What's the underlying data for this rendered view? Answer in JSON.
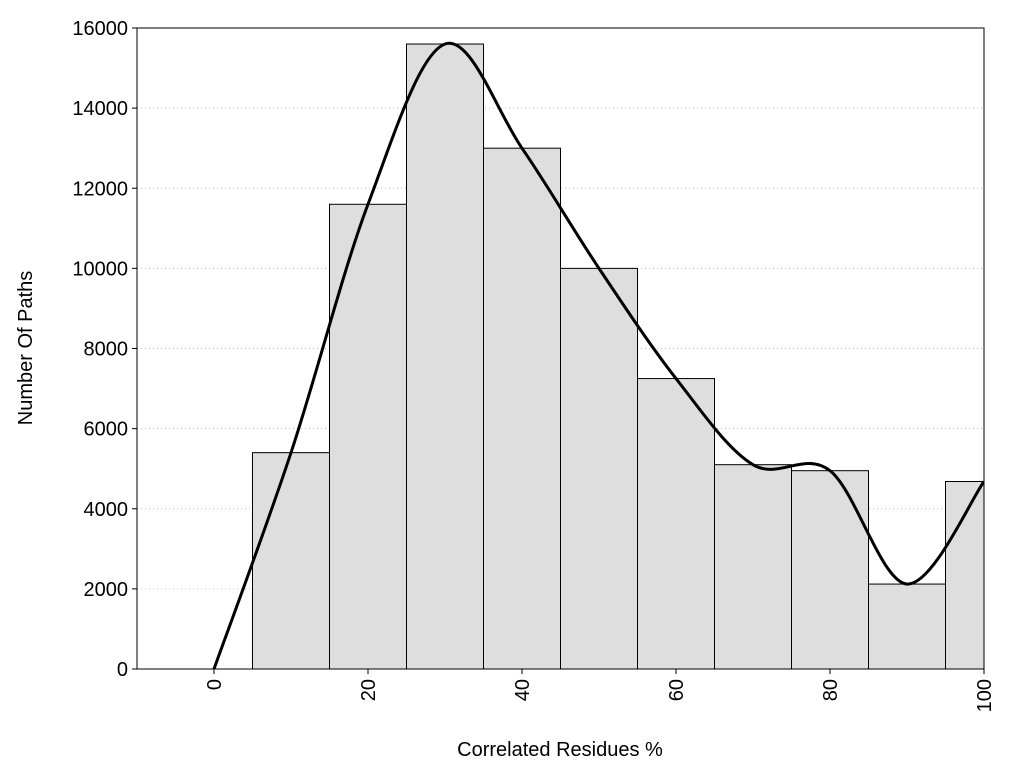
{
  "chart_data": {
    "type": "histogram",
    "x_label": "Correlated Residues %",
    "y_label": "Number Of Paths",
    "bins": [
      5,
      15,
      25,
      35,
      45,
      55,
      65,
      75,
      85,
      95,
      105
    ],
    "values": [
      5400,
      11600,
      15600,
      13000,
      10000,
      7250,
      5100,
      4950,
      2120,
      4680
    ],
    "color": "#dedede",
    "curve": {
      "x": [
        0,
        10,
        20,
        30,
        40,
        50,
        60,
        70,
        80,
        90,
        100
      ],
      "values": [
        0,
        5400,
        11600,
        15600,
        13000,
        10000,
        7250,
        5100,
        4950,
        2120,
        4680
      ],
      "color": "#000000"
    },
    "xlim": [
      -10,
      100
    ],
    "ylim": [
      0,
      16000
    ],
    "xticks": [
      0,
      20,
      40,
      60,
      80,
      100
    ],
    "yticks": [
      0,
      2000,
      4000,
      6000,
      8000,
      10000,
      12000,
      14000,
      16000
    ],
    "grid": true
  }
}
